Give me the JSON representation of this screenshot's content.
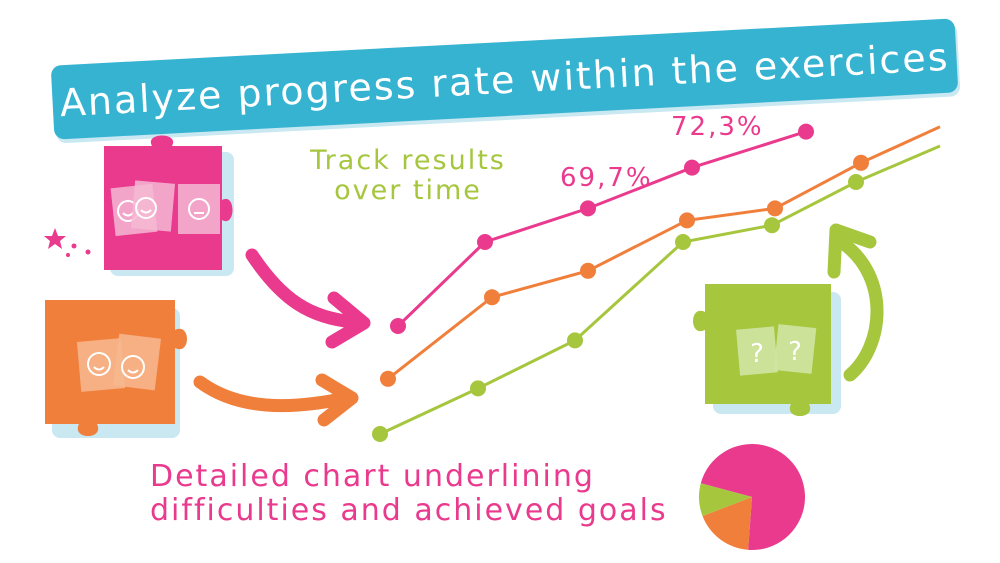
{
  "banner": {
    "title": "Analyze progress rate within the exercices"
  },
  "captions": {
    "track_line1": "Track results",
    "track_line2": "over time",
    "detail_line1": "Detailed chart underlining",
    "detail_line2": "difficulties and achieved goals"
  },
  "value_labels": {
    "a": "69,7%",
    "b": "72,3%"
  },
  "colors": {
    "banner": "#35b3d1",
    "pink": "#e93a8d",
    "orange": "#f07f3c",
    "green": "#a6c63e"
  },
  "puzzle_pieces": [
    {
      "color": "pink",
      "icons": [
        "happy-face-icon",
        "happy-face-icon",
        "neutral-face-icon"
      ]
    },
    {
      "color": "orange",
      "icons": [
        "happy-face-icon",
        "happy-face-icon"
      ]
    },
    {
      "color": "green",
      "icons": [
        "question-mark-icon",
        "question-mark-icon"
      ]
    }
  ],
  "chart_data": {
    "type": "line",
    "title": "",
    "series": [
      {
        "color": "#e93a8d",
        "values": [
          10,
          45,
          59,
          76,
          91
        ]
      },
      {
        "color": "#f07f3c",
        "values": [
          -12,
          22,
          33,
          54,
          59,
          78,
          93
        ]
      },
      {
        "color": "#a6c63e",
        "values": [
          -35,
          -16,
          4,
          45,
          52,
          70,
          85
        ]
      }
    ],
    "pie": {
      "type": "pie",
      "slices": [
        {
          "color": "#e93a8d",
          "value": 72
        },
        {
          "color": "#f07f3c",
          "value": 18
        },
        {
          "color": "#a6c63e",
          "value": 10
        }
      ]
    }
  }
}
